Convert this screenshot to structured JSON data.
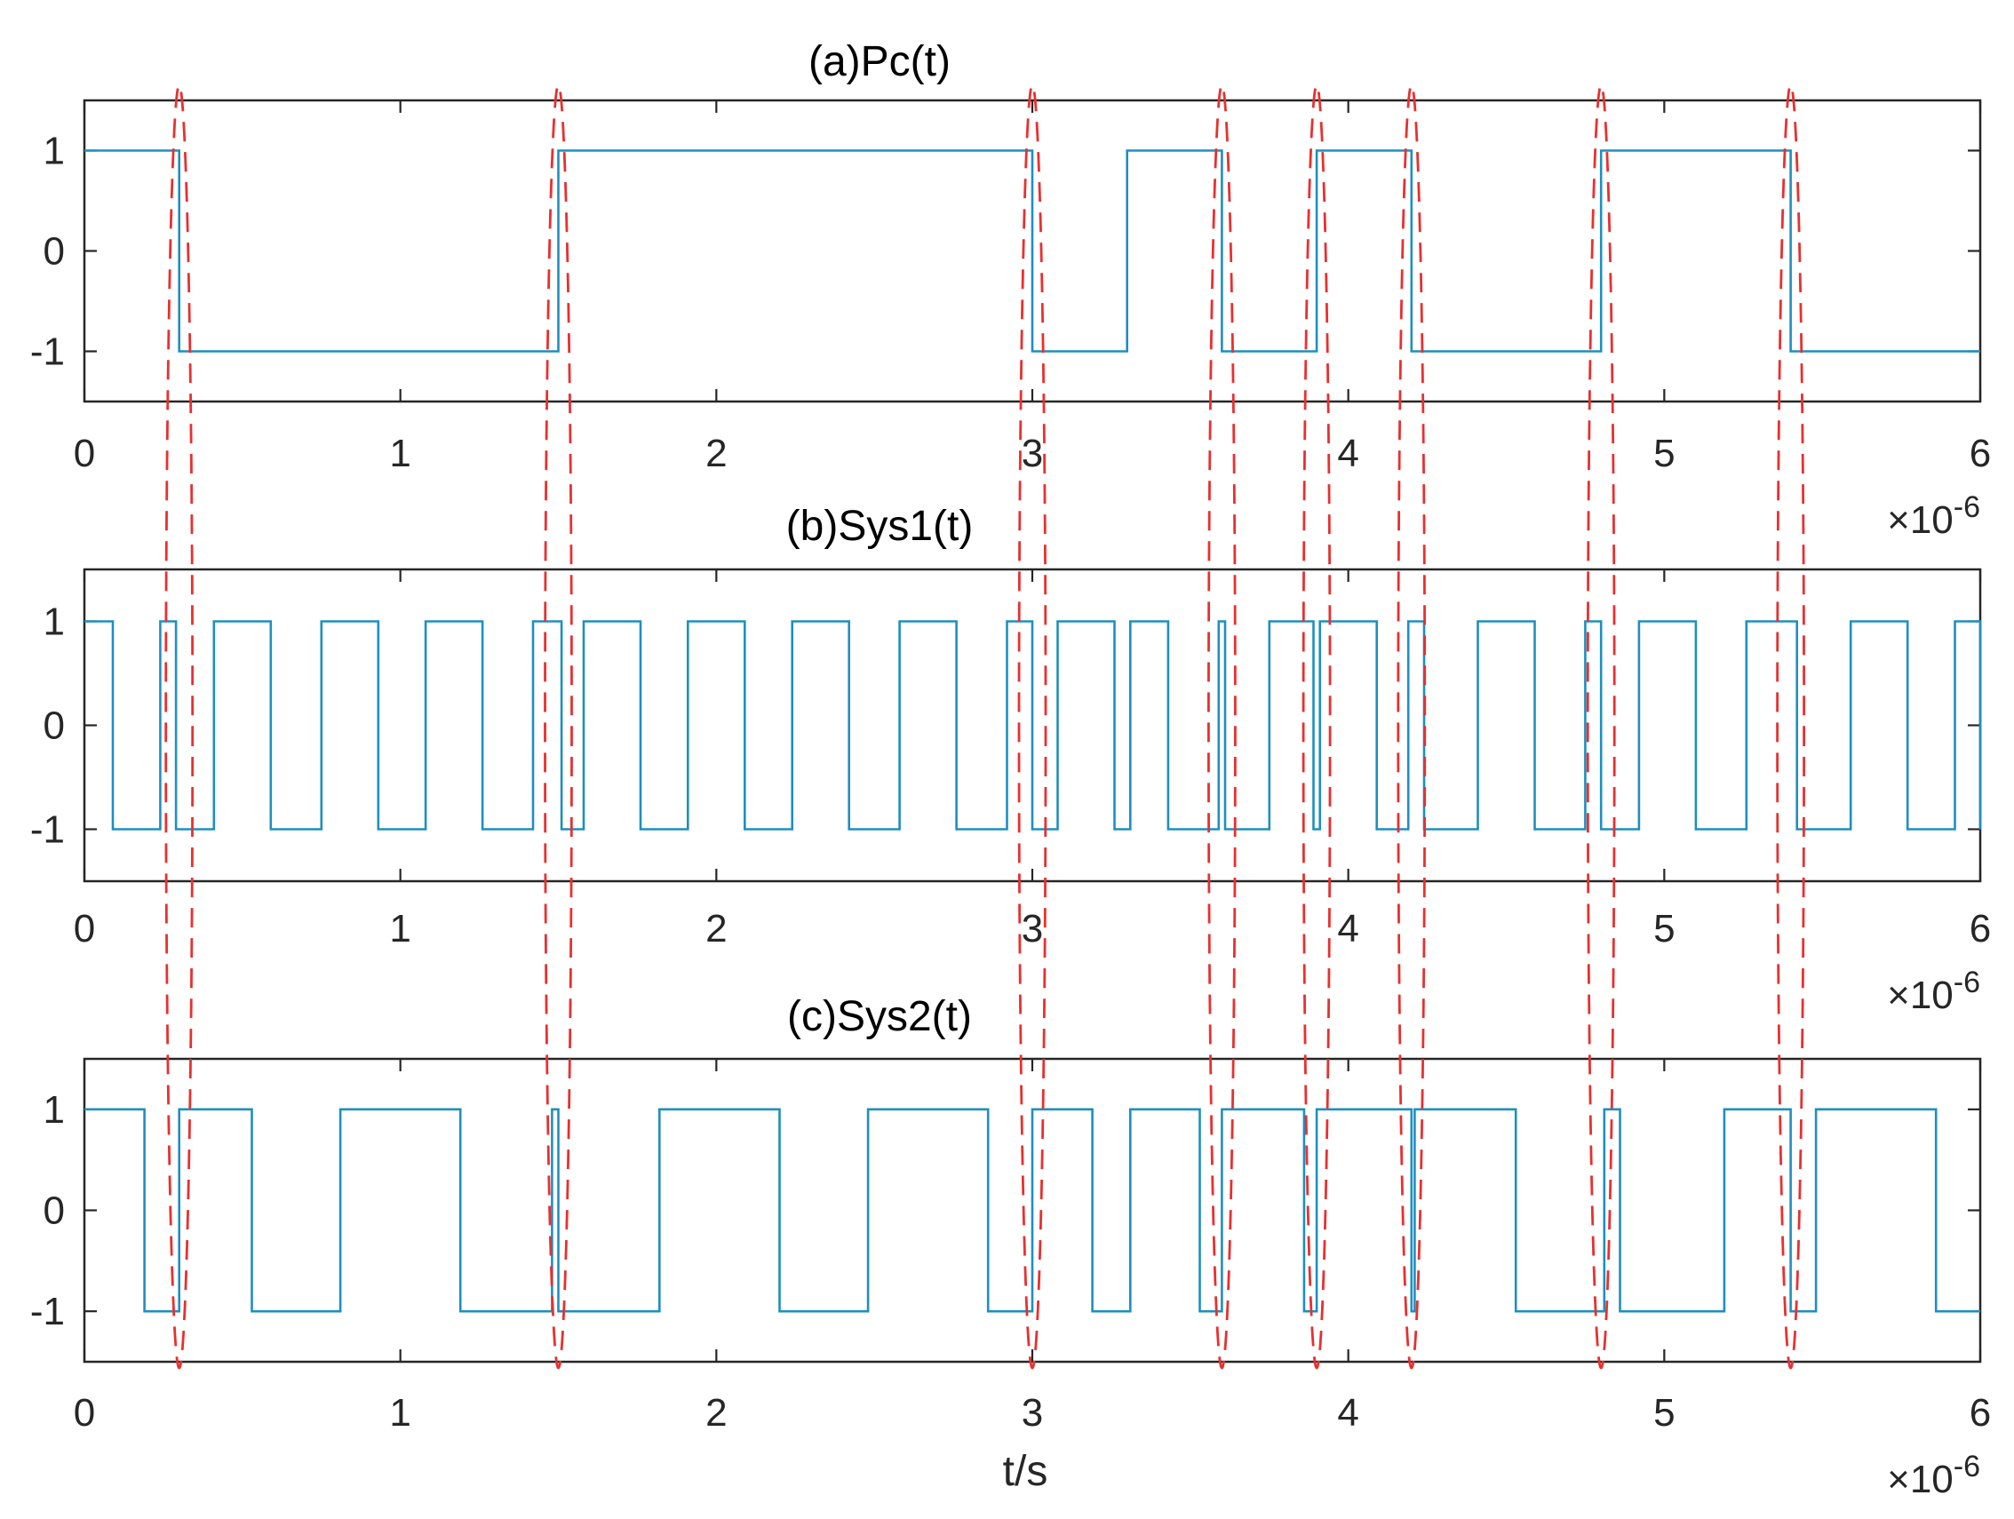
{
  "colors": {
    "signal": "#1e8fbf",
    "marker": "#e8302f",
    "axes": "#262626"
  },
  "chart_data": [
    {
      "type": "line",
      "step": true,
      "title": "(a)Pc(t)",
      "xlabel": "",
      "x_exponent": "×10-6",
      "x_tick_labels": [
        "0",
        "1",
        "2",
        "3",
        "4",
        "5",
        "6"
      ],
      "y_tick_labels": [
        "1",
        "0",
        "-1"
      ],
      "xlim": [
        0,
        6
      ],
      "ylim": [
        -1.5,
        1.5
      ],
      "series": [
        {
          "values": [
            [
              0,
              1
            ],
            [
              0.3,
              -1
            ],
            [
              1.5,
              1
            ],
            [
              3.0,
              -1
            ],
            [
              3.3,
              1
            ],
            [
              3.6,
              -1
            ],
            [
              3.9,
              1
            ],
            [
              4.2,
              -1
            ],
            [
              4.8,
              1
            ],
            [
              5.4,
              -1
            ],
            [
              6.0,
              -1
            ]
          ]
        }
      ]
    },
    {
      "type": "line",
      "step": true,
      "title": "(b)Sys1(t)",
      "xlabel": "",
      "x_exponent": "×10-6",
      "x_tick_labels": [
        "0",
        "1",
        "2",
        "3",
        "4",
        "5",
        "6"
      ],
      "y_tick_labels": [
        "1",
        "0",
        "-1"
      ],
      "xlim": [
        0,
        6
      ],
      "ylim": [
        -1.5,
        1.5
      ],
      "series": [
        {
          "values": [
            [
              0,
              1
            ],
            [
              0.09,
              -1
            ],
            [
              0.24,
              1
            ],
            [
              0.29,
              -1
            ],
            [
              0.41,
              1
            ],
            [
              0.59,
              -1
            ],
            [
              0.75,
              1
            ],
            [
              0.93,
              -1
            ],
            [
              1.08,
              1
            ],
            [
              1.26,
              -1
            ],
            [
              1.42,
              1
            ],
            [
              1.51,
              -1
            ],
            [
              1.58,
              1
            ],
            [
              1.76,
              -1
            ],
            [
              1.91,
              1
            ],
            [
              2.09,
              -1
            ],
            [
              2.24,
              1
            ],
            [
              2.42,
              -1
            ],
            [
              2.58,
              1
            ],
            [
              2.76,
              -1
            ],
            [
              2.92,
              1
            ],
            [
              3.0,
              -1
            ],
            [
              3.08,
              1
            ],
            [
              3.26,
              -1
            ],
            [
              3.31,
              1
            ],
            [
              3.43,
              -1
            ],
            [
              3.59,
              1
            ],
            [
              3.61,
              -1
            ],
            [
              3.75,
              1
            ],
            [
              3.89,
              -1
            ],
            [
              3.91,
              1
            ],
            [
              4.09,
              -1
            ],
            [
              4.19,
              1
            ],
            [
              4.24,
              -1
            ],
            [
              4.41,
              1
            ],
            [
              4.59,
              -1
            ],
            [
              4.75,
              1
            ],
            [
              4.8,
              -1
            ],
            [
              4.92,
              1
            ],
            [
              5.1,
              -1
            ],
            [
              5.26,
              1
            ],
            [
              5.42,
              -1
            ],
            [
              5.59,
              1
            ],
            [
              5.77,
              -1
            ],
            [
              5.92,
              1
            ],
            [
              6.0,
              -1
            ]
          ]
        }
      ]
    },
    {
      "type": "line",
      "step": true,
      "title": "(c)Sys2(t)",
      "xlabel": "t/s",
      "x_exponent": "×10-6",
      "x_tick_labels": [
        "0",
        "1",
        "2",
        "3",
        "4",
        "5",
        "6"
      ],
      "y_tick_labels": [
        "1",
        "0",
        "-1"
      ],
      "xlim": [
        0,
        6
      ],
      "ylim": [
        -1.5,
        1.5
      ],
      "series": [
        {
          "values": [
            [
              0,
              1
            ],
            [
              0.19,
              -1
            ],
            [
              0.3,
              1
            ],
            [
              0.53,
              -1
            ],
            [
              0.81,
              1
            ],
            [
              1.19,
              -1
            ],
            [
              1.48,
              1
            ],
            [
              1.5,
              -1
            ],
            [
              1.82,
              1
            ],
            [
              2.2,
              -1
            ],
            [
              2.48,
              1
            ],
            [
              2.86,
              -1
            ],
            [
              3.0,
              1
            ],
            [
              3.19,
              -1
            ],
            [
              3.31,
              1
            ],
            [
              3.53,
              -1
            ],
            [
              3.6,
              1
            ],
            [
              3.86,
              -1
            ],
            [
              3.9,
              1
            ],
            [
              4.2,
              -1
            ],
            [
              4.21,
              1
            ],
            [
              4.53,
              -1
            ],
            [
              4.81,
              1
            ],
            [
              4.86,
              -1
            ],
            [
              5.19,
              1
            ],
            [
              5.4,
              -1
            ],
            [
              5.48,
              1
            ],
            [
              5.86,
              -1
            ],
            [
              6.0,
              -1
            ]
          ]
        }
      ]
    }
  ],
  "markers": {
    "x": [
      0.3,
      1.5,
      3.0,
      3.6,
      3.9,
      4.2,
      4.8,
      5.4
    ]
  }
}
